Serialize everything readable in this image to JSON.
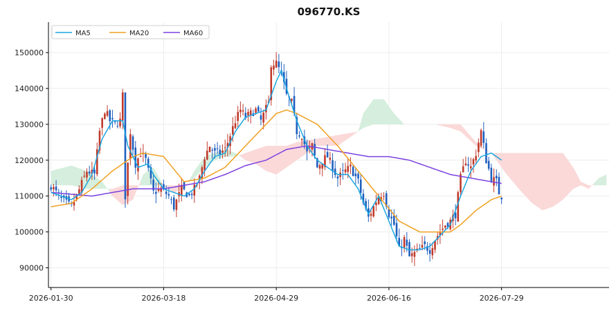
{
  "chart_data": {
    "type": "candlestick",
    "title": "096770.KS",
    "xlabel": "",
    "ylabel": "",
    "ylim": [
      84500,
      158500
    ],
    "xlim": [
      -1,
      218
    ],
    "grid": true,
    "legend_position": "top-left",
    "y_ticks": [
      90000,
      100000,
      110000,
      120000,
      130000,
      140000,
      150000
    ],
    "x_ticks": [
      {
        "label": "2026-01-30",
        "index": 0
      },
      {
        "label": "2026-03-18",
        "index": 44
      },
      {
        "label": "2026-04-29",
        "index": 88
      },
      {
        "label": "2026-06-16",
        "index": 132
      },
      {
        "label": "2026-07-29",
        "index": 176
      }
    ],
    "colors": {
      "up": "#c0392b",
      "down": "#1f5fbf",
      "ma5": "#1aa6e0",
      "ma20": "#f0a020",
      "ma60": "#7b40e0",
      "cloud_bull": "#d5eedd",
      "cloud_bear": "#fbd9d9"
    },
    "legend": [
      {
        "name": "MA5",
        "key": "ma5"
      },
      {
        "name": "MA20",
        "key": "ma20"
      },
      {
        "name": "MA60",
        "key": "ma60"
      }
    ],
    "anchors": {
      "close": [
        [
          0,
          113000
        ],
        [
          4,
          109000
        ],
        [
          8,
          107000
        ],
        [
          10,
          110000
        ],
        [
          14,
          117000
        ],
        [
          17,
          116000
        ],
        [
          19,
          128000
        ],
        [
          21,
          134000
        ],
        [
          23,
          131000
        ],
        [
          25,
          130000
        ],
        [
          27,
          131000
        ],
        [
          28,
          138000
        ],
        [
          29,
          110000
        ],
        [
          31,
          128000
        ],
        [
          33,
          119000
        ],
        [
          35,
          122000
        ],
        [
          37,
          120000
        ],
        [
          40,
          111000
        ],
        [
          43,
          112000
        ],
        [
          46,
          110000
        ],
        [
          48,
          107000
        ],
        [
          51,
          112000
        ],
        [
          54,
          110000
        ],
        [
          56,
          112000
        ],
        [
          58,
          115000
        ],
        [
          60,
          121000
        ],
        [
          62,
          124000
        ],
        [
          64,
          122000
        ],
        [
          66,
          122000
        ],
        [
          68,
          123000
        ],
        [
          70,
          127000
        ],
        [
          72,
          131000
        ],
        [
          74,
          134000
        ],
        [
          76,
          132000
        ],
        [
          78,
          133000
        ],
        [
          80,
          134000
        ],
        [
          82,
          131000
        ],
        [
          85,
          136000
        ],
        [
          86,
          147000
        ],
        [
          88,
          147000
        ],
        [
          90,
          144000
        ],
        [
          92,
          138000
        ],
        [
          94,
          136000
        ],
        [
          96,
          128000
        ],
        [
          98,
          127000
        ],
        [
          100,
          122000
        ],
        [
          102,
          124000
        ],
        [
          104,
          118000
        ],
        [
          106,
          120000
        ],
        [
          108,
          121000
        ],
        [
          110,
          118000
        ],
        [
          112,
          115000
        ],
        [
          115,
          117000
        ],
        [
          117,
          118000
        ],
        [
          120,
          114000
        ],
        [
          122,
          108000
        ],
        [
          124,
          104000
        ],
        [
          126,
          107000
        ],
        [
          128,
          110000
        ],
        [
          130,
          111000
        ],
        [
          132,
          105000
        ],
        [
          134,
          102000
        ],
        [
          136,
          95000
        ],
        [
          138,
          98000
        ],
        [
          140,
          93000
        ],
        [
          142,
          94000
        ],
        [
          144,
          95000
        ],
        [
          146,
          96000
        ],
        [
          148,
          95000
        ],
        [
          150,
          98000
        ],
        [
          152,
          100000
        ],
        [
          154,
          102000
        ],
        [
          156,
          103000
        ],
        [
          158,
          105000
        ],
        [
          160,
          115000
        ],
        [
          162,
          120000
        ],
        [
          164,
          118000
        ],
        [
          166,
          122000
        ],
        [
          168,
          128000
        ],
        [
          170,
          120000
        ],
        [
          172,
          115000
        ],
        [
          174,
          114000
        ],
        [
          175,
          111000
        ],
        [
          176,
          110000
        ]
      ],
      "ma5": [
        [
          0,
          111000
        ],
        [
          4,
          110000
        ],
        [
          8,
          109000
        ],
        [
          12,
          111000
        ],
        [
          16,
          116000
        ],
        [
          20,
          126000
        ],
        [
          24,
          131000
        ],
        [
          28,
          131000
        ],
        [
          30,
          124000
        ],
        [
          34,
          118000
        ],
        [
          38,
          119000
        ],
        [
          40,
          116000
        ],
        [
          44,
          112000
        ],
        [
          48,
          111000
        ],
        [
          52,
          110000
        ],
        [
          56,
          112000
        ],
        [
          60,
          117000
        ],
        [
          64,
          121000
        ],
        [
          68,
          122000
        ],
        [
          72,
          128000
        ],
        [
          76,
          132000
        ],
        [
          80,
          133000
        ],
        [
          84,
          134000
        ],
        [
          88,
          142000
        ],
        [
          90,
          145000
        ],
        [
          92,
          140000
        ],
        [
          96,
          131000
        ],
        [
          100,
          124000
        ],
        [
          104,
          120000
        ],
        [
          108,
          118000
        ],
        [
          112,
          116000
        ],
        [
          116,
          116000
        ],
        [
          120,
          112000
        ],
        [
          124,
          105000
        ],
        [
          128,
          110000
        ],
        [
          132,
          103000
        ],
        [
          136,
          96000
        ],
        [
          140,
          95000
        ],
        [
          144,
          95000
        ],
        [
          148,
          96000
        ],
        [
          152,
          99000
        ],
        [
          156,
          102000
        ],
        [
          160,
          110000
        ],
        [
          164,
          117000
        ],
        [
          168,
          121000
        ],
        [
          172,
          122000
        ],
        [
          176,
          120000
        ]
      ],
      "ma20": [
        [
          0,
          107000
        ],
        [
          8,
          108000
        ],
        [
          16,
          112000
        ],
        [
          24,
          117000
        ],
        [
          32,
          121000
        ],
        [
          36,
          122000
        ],
        [
          44,
          121000
        ],
        [
          52,
          114000
        ],
        [
          60,
          115000
        ],
        [
          68,
          118000
        ],
        [
          76,
          124000
        ],
        [
          84,
          130000
        ],
        [
          88,
          133000
        ],
        [
          92,
          134000
        ],
        [
          96,
          133000
        ],
        [
          104,
          130000
        ],
        [
          112,
          124000
        ],
        [
          120,
          117000
        ],
        [
          128,
          110000
        ],
        [
          136,
          103000
        ],
        [
          144,
          100000
        ],
        [
          150,
          100000
        ],
        [
          156,
          100000
        ],
        [
          160,
          102000
        ],
        [
          166,
          106000
        ],
        [
          172,
          109000
        ],
        [
          176,
          110000
        ]
      ],
      "ma60": [
        [
          0,
          111000
        ],
        [
          8,
          110500
        ],
        [
          16,
          110000
        ],
        [
          24,
          111000
        ],
        [
          32,
          112000
        ],
        [
          44,
          112000
        ],
        [
          52,
          113000
        ],
        [
          60,
          114000
        ],
        [
          68,
          116000
        ],
        [
          76,
          118500
        ],
        [
          84,
          120000
        ],
        [
          92,
          123000
        ],
        [
          100,
          124000
        ],
        [
          108,
          123000
        ],
        [
          116,
          122000
        ],
        [
          124,
          121000
        ],
        [
          132,
          121000
        ],
        [
          140,
          120000
        ],
        [
          148,
          118000
        ],
        [
          156,
          116000
        ],
        [
          164,
          115000
        ],
        [
          172,
          114000
        ],
        [
          176,
          113500
        ]
      ],
      "cloud_a": [
        [
          0,
          117000
        ],
        [
          8,
          118500
        ],
        [
          14,
          117000
        ],
        [
          20,
          114000
        ],
        [
          24,
          110000
        ],
        [
          28,
          107500
        ],
        [
          32,
          109000
        ],
        [
          36,
          116000
        ],
        [
          40,
          118000
        ],
        [
          44,
          113000
        ],
        [
          48,
          111000
        ],
        [
          52,
          112000
        ],
        [
          56,
          117000
        ],
        [
          60,
          121000
        ],
        [
          64,
          122000
        ],
        [
          68,
          123000
        ],
        [
          72,
          122000
        ],
        [
          76,
          120000
        ],
        [
          80,
          119000
        ],
        [
          84,
          117000
        ],
        [
          88,
          116000
        ],
        [
          92,
          118000
        ],
        [
          96,
          120000
        ],
        [
          104,
          124000
        ],
        [
          112,
          124000
        ],
        [
          120,
          128000
        ],
        [
          122,
          133000
        ],
        [
          126,
          137000
        ],
        [
          130,
          137000
        ],
        [
          134,
          133000
        ],
        [
          138,
          130000
        ],
        [
          144,
          130000
        ],
        [
          150,
          130000
        ],
        [
          156,
          129000
        ],
        [
          160,
          128000
        ],
        [
          166,
          124000
        ],
        [
          172,
          122000
        ],
        [
          178,
          116000
        ],
        [
          184,
          111000
        ],
        [
          188,
          108000
        ],
        [
          192,
          106000
        ],
        [
          196,
          107000
        ],
        [
          200,
          109000
        ],
        [
          204,
          112000
        ],
        [
          207,
          113000
        ],
        [
          210,
          112000
        ],
        [
          214,
          115000
        ],
        [
          217,
          116000
        ]
      ],
      "cloud_b": [
        [
          0,
          113000
        ],
        [
          8,
          113000
        ],
        [
          14,
          112000
        ],
        [
          20,
          112000
        ],
        [
          24,
          112000
        ],
        [
          28,
          113000
        ],
        [
          32,
          113000
        ],
        [
          36,
          113000
        ],
        [
          40,
          113000
        ],
        [
          44,
          113000
        ],
        [
          48,
          113000
        ],
        [
          52,
          113000
        ],
        [
          56,
          115000
        ],
        [
          60,
          118000
        ],
        [
          64,
          120000
        ],
        [
          68,
          121000
        ],
        [
          72,
          121000
        ],
        [
          76,
          122000
        ],
        [
          80,
          123000
        ],
        [
          84,
          124000
        ],
        [
          88,
          124000
        ],
        [
          92,
          124000
        ],
        [
          96,
          125000
        ],
        [
          104,
          126000
        ],
        [
          112,
          127000
        ],
        [
          120,
          128000
        ],
        [
          122,
          129000
        ],
        [
          126,
          130000
        ],
        [
          130,
          130000
        ],
        [
          134,
          130000
        ],
        [
          138,
          130000
        ],
        [
          144,
          130000
        ],
        [
          150,
          130000
        ],
        [
          156,
          130000
        ],
        [
          160,
          130000
        ],
        [
          166,
          125000
        ],
        [
          172,
          122000
        ],
        [
          178,
          122000
        ],
        [
          184,
          122000
        ],
        [
          188,
          122000
        ],
        [
          192,
          122000
        ],
        [
          196,
          122000
        ],
        [
          200,
          122000
        ],
        [
          204,
          118000
        ],
        [
          207,
          114000
        ],
        [
          210,
          113000
        ],
        [
          214,
          113000
        ],
        [
          217,
          113000
        ]
      ]
    }
  }
}
